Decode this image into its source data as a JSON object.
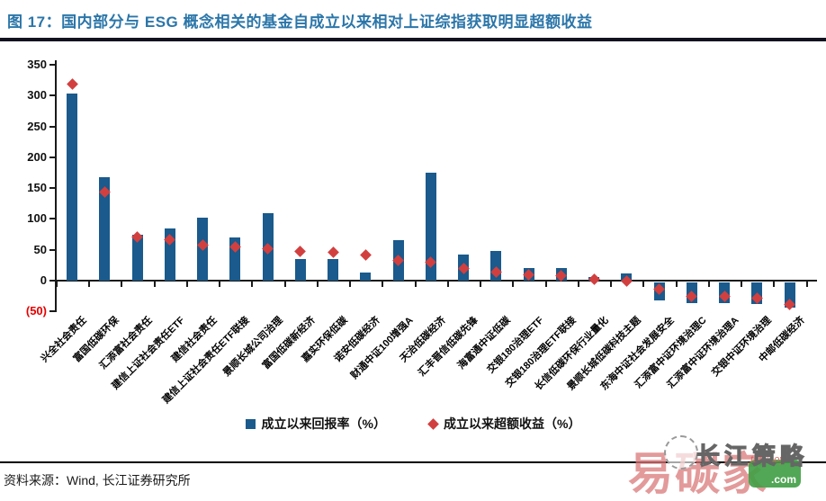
{
  "header": {
    "title": "图 17：国内部分与 ESG 概念相关的基金自成立以来相对上证综指获取明显超额收益"
  },
  "chart_data": {
    "type": "bar",
    "title": "",
    "xlabel": "",
    "ylabel": "",
    "ylim": [
      -50,
      350
    ],
    "grid": false,
    "legend_position": "bottom",
    "bar_color": "#1A5A8C",
    "marker_color": "#D23F3F",
    "y_ticks": [
      350,
      300,
      250,
      200,
      150,
      100,
      50,
      0,
      -50
    ],
    "categories": [
      "兴全社会责任",
      "富国低碳环保",
      "汇添富社会责任",
      "建信上证社会责任ETF",
      "建信社会责任",
      "建信上证社会责任ETF联接",
      "景顺长城公司治理",
      "富国低碳新经济",
      "嘉实环保低碳",
      "诺安低碳经济",
      "财通中证100增强A",
      "天治低碳经济",
      "汇丰晋信低碳先锋",
      "海富通中证低碳",
      "交银180治理ETF",
      "交银180治理ETF联接",
      "长信低碳环保行业量化",
      "景顺长城低碳科技主题",
      "东海中证社会发展安全",
      "汇添富中证环境治理C",
      "汇添富中证环境治理A",
      "交银中证环境治理",
      "中邮低碳经济"
    ],
    "series": [
      {
        "name": "成立以来回报率（%）",
        "style": "bar",
        "values": [
          303,
          168,
          74,
          84,
          102,
          70,
          110,
          35,
          35,
          13,
          66,
          175,
          42,
          48,
          20,
          21,
          6,
          11,
          -29,
          -33,
          -33,
          -35,
          -41
        ]
      },
      {
        "name": "成立以来超额收益（%）",
        "style": "diamond-marker",
        "values": [
          318,
          144,
          71,
          66,
          57,
          54,
          52,
          48,
          46,
          41,
          33,
          30,
          19,
          14,
          10,
          8,
          2,
          0,
          -14,
          -26,
          -26,
          -29,
          -38
        ]
      }
    ]
  },
  "legend": {
    "bar_label": "成立以来回报率（%）",
    "marker_label": "成立以来超额收益（%）"
  },
  "footer": {
    "source": "资料来源：Wind, 长江证券研究所"
  },
  "watermark": {
    "brand": "易碳家",
    "badge_line1": "tanjiaoyi",
    "badge_line2": ".com",
    "overlay": "长江策略"
  }
}
